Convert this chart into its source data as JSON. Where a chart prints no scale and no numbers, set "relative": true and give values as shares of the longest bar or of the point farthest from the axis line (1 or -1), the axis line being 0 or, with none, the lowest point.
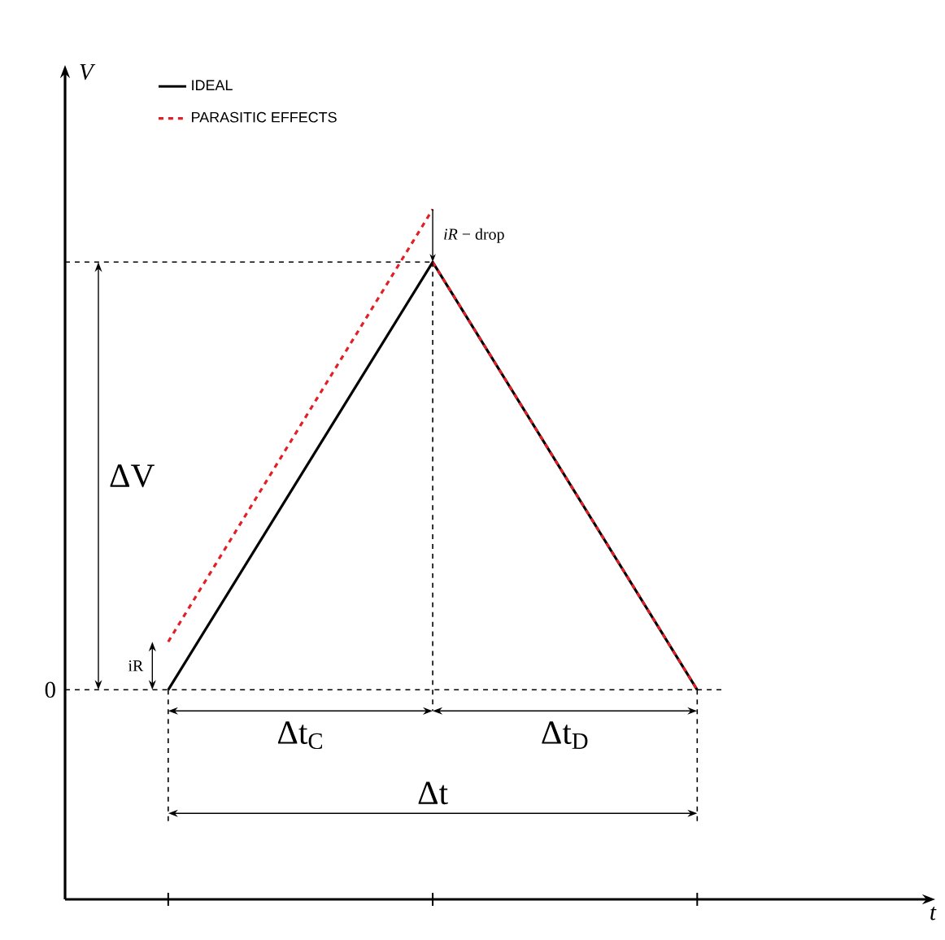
{
  "chart_data": {
    "type": "line",
    "relative": true,
    "legend": "top left",
    "categories": [
      null,
      null,
      null
    ],
    "series": [
      {
        "name": "IDEAL",
        "color": "#000000",
        "line_style": "solid",
        "values": [
          0,
          0.89,
          0
        ]
      },
      {
        "name": "PARASITIC EFFECTS",
        "color": "#e31e24",
        "line_style": "dashed",
        "values": [
          0.1,
          1,
          null
        ]
      },
      {
        "color": "#e31e24",
        "line_style": "dashed",
        "values": [
          null,
          0.89,
          0
        ]
      }
    ],
    "annotations": [
      "*iR* − drop",
      "ΔV",
      "iR",
      "Δt$_{C}$",
      "Δt$_{D}$",
      "Δt",
      "0",
      "V",
      "t"
    ]
  }
}
